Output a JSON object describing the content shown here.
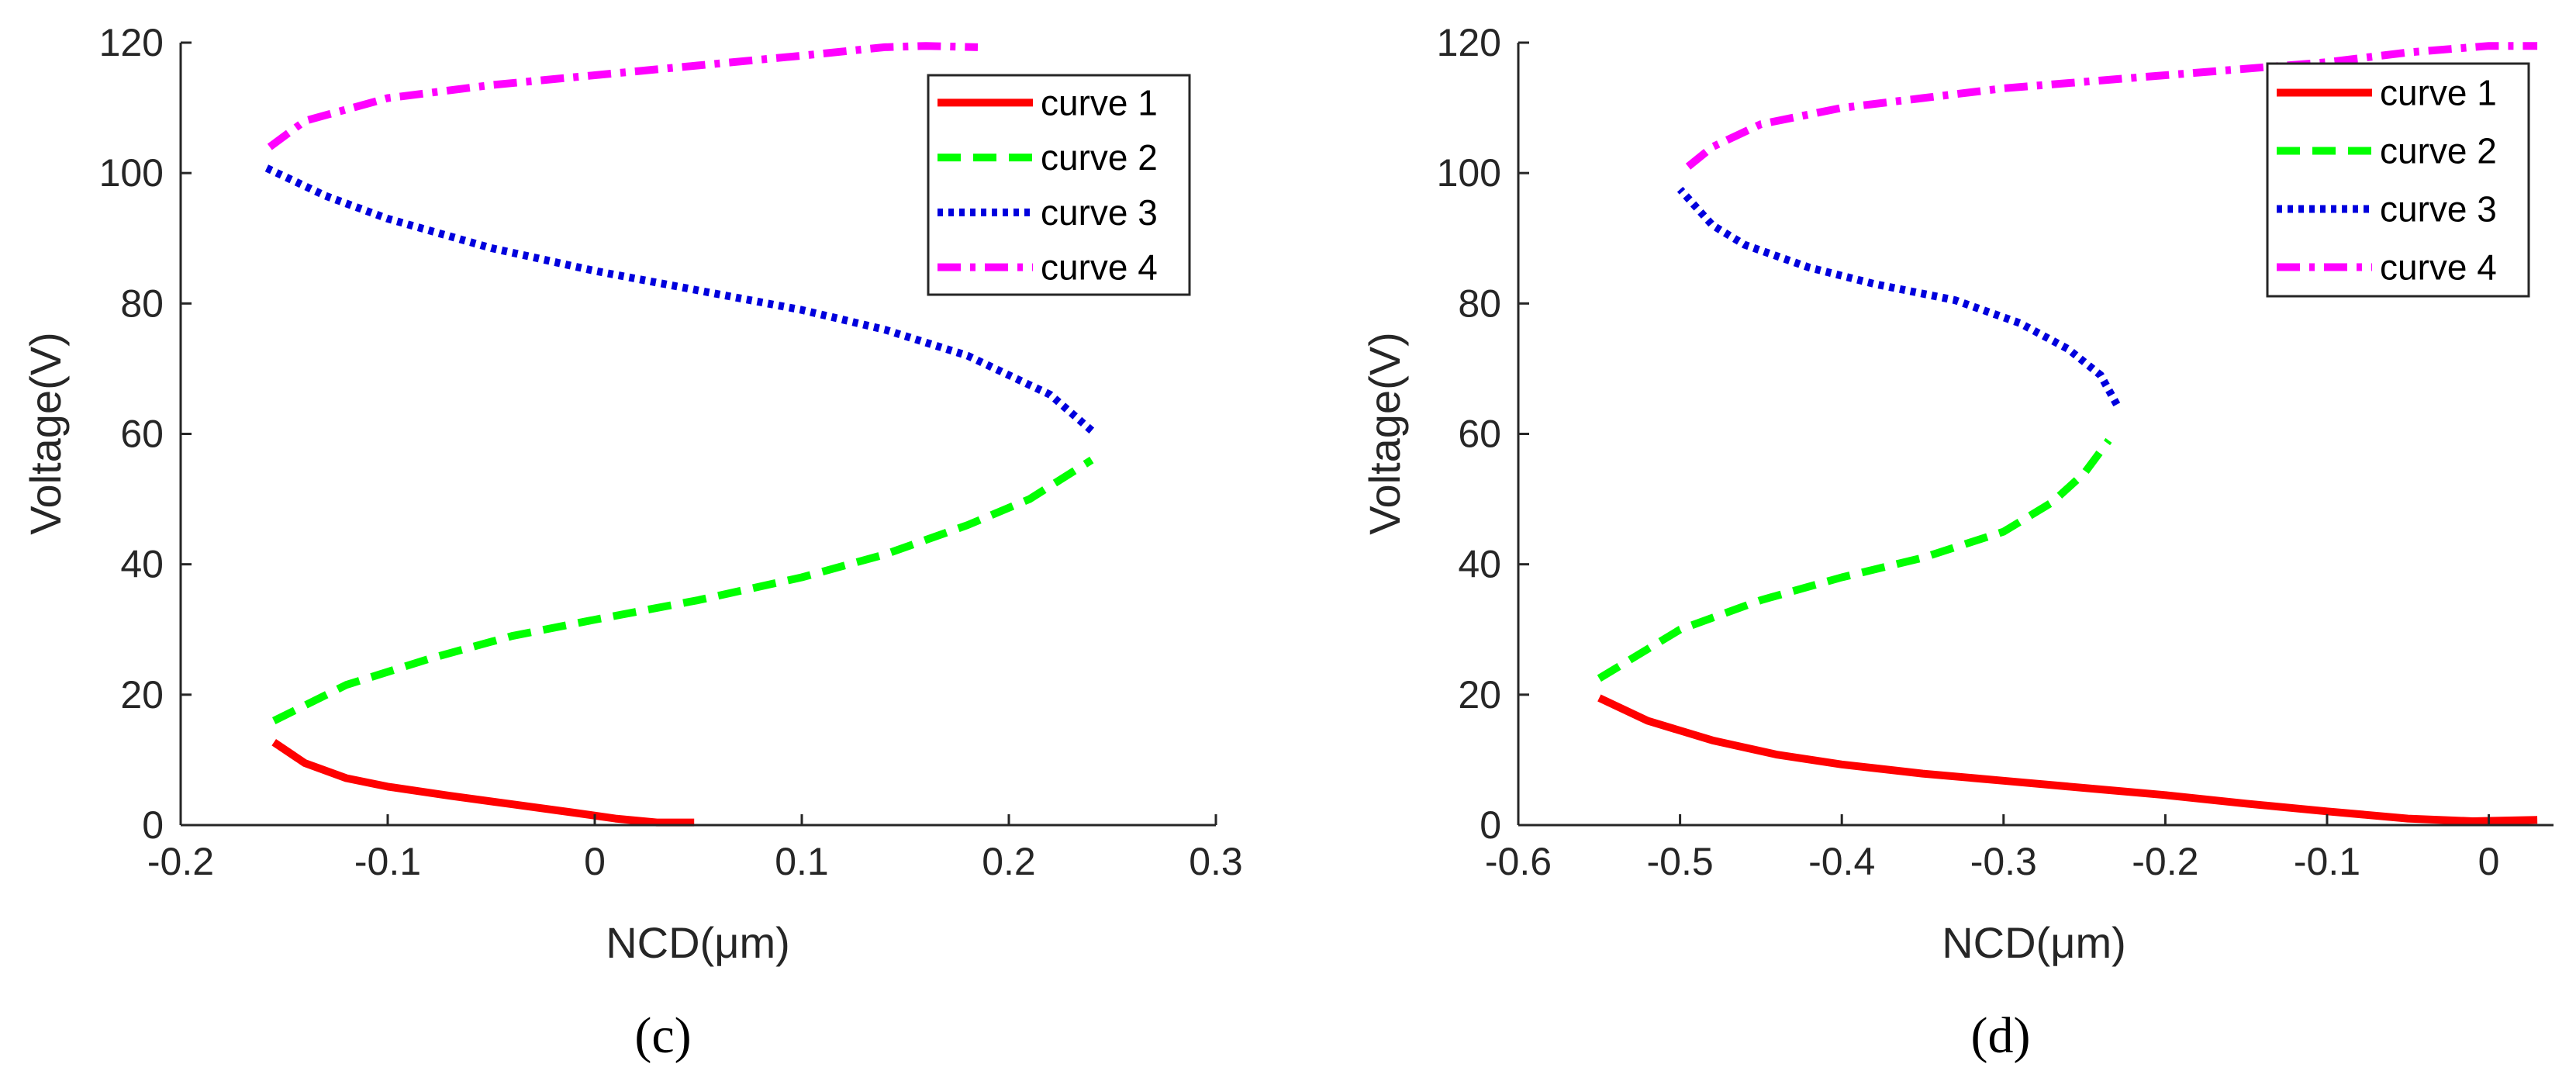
{
  "chart_data": [
    {
      "type": "line",
      "caption": "(c)",
      "xlabel": "NCD(μm)",
      "ylabel": "Voltage(V)",
      "xlim": [
        -0.2,
        0.3
      ],
      "ylim": [
        0,
        120
      ],
      "xticks": [
        -0.2,
        -0.1,
        0,
        0.1,
        0.2,
        0.3
      ],
      "xtick_labels": [
        "-0.2",
        "-0.1",
        "0",
        "0.1",
        "0.2",
        "0.3"
      ],
      "yticks": [
        0,
        20,
        40,
        60,
        80,
        100,
        120
      ],
      "ytick_labels": [
        "0",
        "20",
        "40",
        "60",
        "80",
        "100",
        "120"
      ],
      "legend_position": "top-right",
      "series": [
        {
          "name": "curve 1",
          "color": "#ff0000",
          "style": "solid",
          "x": [
            -0.155,
            -0.14,
            -0.12,
            -0.1,
            -0.07,
            -0.04,
            -0.01,
            0.01,
            0.03,
            0.048
          ],
          "y": [
            12.7,
            9.5,
            7.2,
            5.9,
            4.5,
            3.2,
            1.9,
            1.0,
            0.4,
            0.4
          ]
        },
        {
          "name": "curve 2",
          "color": "#00ff00",
          "style": "dashed",
          "x": [
            -0.155,
            -0.12,
            -0.08,
            -0.04,
            0.0,
            0.05,
            0.1,
            0.14,
            0.18,
            0.21,
            0.24
          ],
          "y": [
            16,
            21.5,
            25.5,
            29,
            31.5,
            34.5,
            38,
            41.5,
            46,
            50,
            56
          ]
        },
        {
          "name": "curve 3",
          "color": "#0000dd",
          "style": "dotted",
          "x": [
            0.24,
            0.22,
            0.18,
            0.14,
            0.1,
            0.05,
            0.0,
            -0.05,
            -0.1,
            -0.13,
            -0.16
          ],
          "y": [
            60.5,
            66,
            72,
            76,
            79,
            82,
            85,
            88.5,
            93,
            96.5,
            101
          ]
        },
        {
          "name": "curve 4",
          "color": "#ff00ff",
          "style": "dashdot",
          "x": [
            -0.157,
            -0.14,
            -0.1,
            -0.05,
            0.0,
            0.05,
            0.1,
            0.14,
            0.16,
            0.185
          ],
          "y": [
            104,
            108,
            111.5,
            113.5,
            115,
            116.5,
            118,
            119.3,
            119.5,
            119.3
          ]
        }
      ]
    },
    {
      "type": "line",
      "caption": "(d)",
      "xlabel": "NCD(μm)",
      "ylabel": "Voltage(V)",
      "xlim": [
        -0.6,
        0.04
      ],
      "ylim": [
        0,
        120
      ],
      "xticks": [
        -0.6,
        -0.5,
        -0.4,
        -0.3,
        -0.2,
        -0.1,
        0
      ],
      "xtick_labels": [
        "-0.6",
        "-0.5",
        "-0.4",
        "-0.3",
        "-0.2",
        "-0.1",
        "0"
      ],
      "yticks": [
        0,
        20,
        40,
        60,
        80,
        100,
        120
      ],
      "ytick_labels": [
        "0",
        "20",
        "40",
        "60",
        "80",
        "100",
        "120"
      ],
      "legend_position": "top-right",
      "series": [
        {
          "name": "curve 1",
          "color": "#ff0000",
          "style": "solid",
          "x": [
            -0.55,
            -0.52,
            -0.48,
            -0.44,
            -0.4,
            -0.35,
            -0.3,
            -0.25,
            -0.2,
            -0.15,
            -0.1,
            -0.05,
            -0.01,
            0.03
          ],
          "y": [
            19.5,
            16,
            13,
            10.8,
            9.3,
            7.9,
            6.8,
            5.7,
            4.6,
            3.3,
            2.1,
            1.0,
            0.6,
            0.8
          ]
        },
        {
          "name": "curve 2",
          "color": "#00ff00",
          "style": "dashed",
          "x": [
            -0.55,
            -0.5,
            -0.45,
            -0.4,
            -0.35,
            -0.3,
            -0.27,
            -0.25,
            -0.235
          ],
          "y": [
            22.5,
            30,
            34.5,
            38,
            41,
            45,
            49.5,
            54,
            59
          ]
        },
        {
          "name": "curve 3",
          "color": "#0000dd",
          "style": "dotted",
          "x": [
            -0.23,
            -0.24,
            -0.26,
            -0.29,
            -0.33,
            -0.38,
            -0.42,
            -0.46,
            -0.48,
            -0.5
          ],
          "y": [
            64.5,
            69,
            73,
            77,
            80.5,
            83,
            85.5,
            89,
            92,
            97.5
          ]
        },
        {
          "name": "curve 4",
          "color": "#ff00ff",
          "style": "dashdot",
          "x": [
            -0.495,
            -0.48,
            -0.45,
            -0.4,
            -0.35,
            -0.3,
            -0.2,
            -0.1,
            -0.05,
            0.0,
            0.03
          ],
          "y": [
            101,
            104,
            107.5,
            110,
            111.5,
            113,
            115,
            117,
            118.5,
            119.5,
            119.5
          ]
        }
      ]
    }
  ]
}
